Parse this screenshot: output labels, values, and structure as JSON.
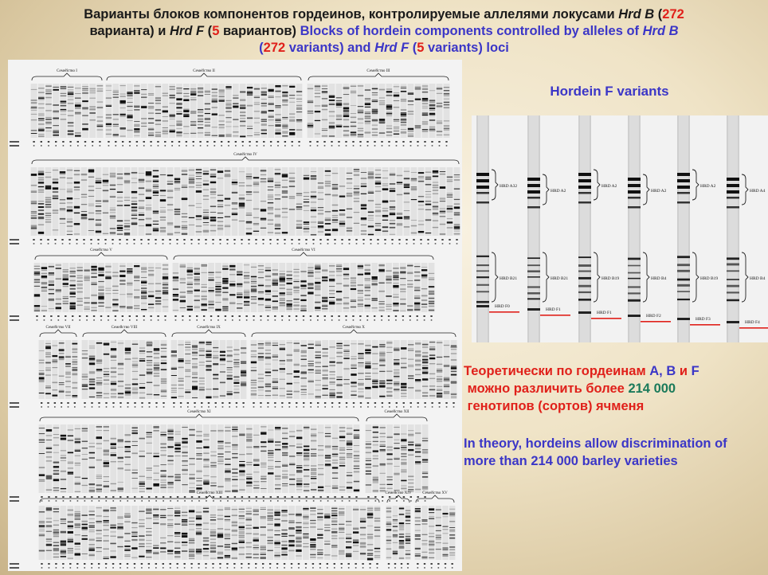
{
  "title": {
    "line1_ru": "Варианты блоков компонентов гордеинов, контролируемые аллелями локусами",
    "locus_b": "Hrd B",
    "open_paren": "(",
    "count_b": "272",
    "line2_ru_a": "варианта) и",
    "locus_f": "Hrd F",
    "count_f": "5",
    "line2_ru_b": "вариантов)",
    "line2_en_a": "Blocks of hordein components controlled by alleles of",
    "locus_b_en": "Hrd B",
    "count_b_en": "272",
    "line3_en_a": "variants) and",
    "locus_f_en": "Hrd F",
    "count_f_en": "5",
    "line3_en_b": "variants) loci"
  },
  "gel_groups": [
    {
      "label": "Семейство I"
    },
    {
      "label": "Семейство II"
    },
    {
      "label": "Семейство III"
    },
    {
      "label": "Семейство IV"
    },
    {
      "label": "Семейство V"
    },
    {
      "label": "Семейство VI"
    },
    {
      "label": "Семейство VII"
    },
    {
      "label": "Семейство VIII"
    },
    {
      "label": "Семейство IX"
    },
    {
      "label": "Семейство X"
    },
    {
      "label": "Семейство XI"
    },
    {
      "label": "Семейство XII"
    },
    {
      "label": "Семейство XIII"
    },
    {
      "label": "Семейство XIV"
    },
    {
      "label": "Семейство XV"
    }
  ],
  "hordein_f": {
    "title": "Hordein F variants",
    "lanes": [
      {
        "a": "HRD A32",
        "b": "HRD B21",
        "f": "HRD F0"
      },
      {
        "a": "HRD A2",
        "b": "HRD B21",
        "f": "HRD F1"
      },
      {
        "a": "HRD A2",
        "b": "HRD B19",
        "f": "HRD F1"
      },
      {
        "a": "HRD A2",
        "b": "HRD B4",
        "f": "HRD F2"
      },
      {
        "a": "HRD A2",
        "b": "HRD B19",
        "f": "HRD F3"
      },
      {
        "a": "HRD A4",
        "b": "HRD B4",
        "f": "HRD F4"
      }
    ]
  },
  "ru_statement": {
    "p1": "Теоретически по гордеинам",
    "a": "A",
    "comma": ",",
    "b": "B",
    "and": "и",
    "f": "F",
    "p2": "можно различить более",
    "number": "214 000",
    "p3": "генотипов (сортов) ячменя"
  },
  "en_statement": {
    "line1": "In theory, hordeins allow discrimination of",
    "line2": "more than 214 000 barley varieties"
  },
  "colors": {
    "red": "#e0201a",
    "blue": "#3b36c7",
    "green": "#1a7a5a",
    "background": "#efe3c6"
  }
}
